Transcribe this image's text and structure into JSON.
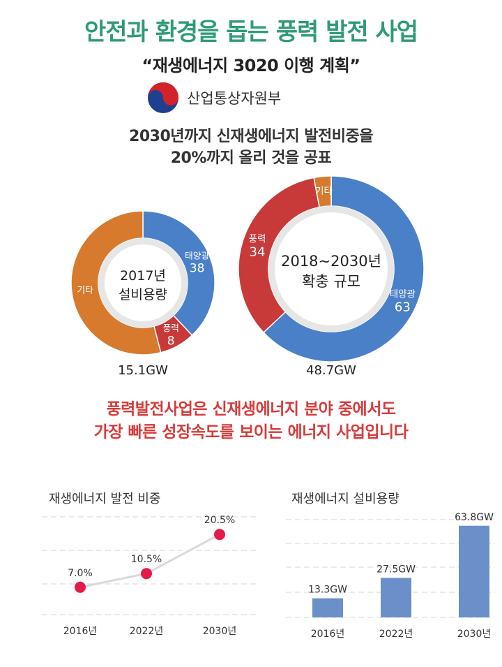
{
  "header": {
    "title": "안전과 환경을 돕는 풍력 발전 사업",
    "subtitle": "“재생에너지 3020 이행 계획”",
    "ministry": "산업통상자원부"
  },
  "headline": {
    "line1": "2030년까지 신재생에너지 발전비중을",
    "line2": "20%까지 올리 것을 공표"
  },
  "message": {
    "line1": "풍력발전사업은 신재생에너지 분야 중에서도",
    "line2": "가장 빠른 성장속도를 보이는 에너지 사업입니다"
  },
  "colors": {
    "title_green": "#2f9a78",
    "solar_blue": "#4a80c8",
    "wind_red": "#c83a3a",
    "other_orange": "#d77a2e",
    "message_red": "#d93a3a",
    "dot_pink": "#e5194a",
    "bar_blue": "#6b8fc8"
  },
  "chart_data": [
    {
      "type": "pie",
      "center_label": [
        "2017년",
        "설비용량"
      ],
      "total_label": "15.1GW",
      "slices": [
        {
          "label": "태양광",
          "value": 38,
          "value_label": "38",
          "color": "#4a80c8"
        },
        {
          "label": "풍력",
          "value": 8,
          "value_label": "8",
          "color": "#c83a3a"
        },
        {
          "label": "기타",
          "value": 54,
          "value_label": "",
          "color": "#d77a2e"
        }
      ]
    },
    {
      "type": "pie",
      "center_label": [
        "2018~2030년",
        "확충 규모"
      ],
      "total_label": "48.7GW",
      "slices": [
        {
          "label": "태양광",
          "value": 63,
          "value_label": "63",
          "color": "#4a80c8"
        },
        {
          "label": "풍력",
          "value": 34,
          "value_label": "34",
          "color": "#c83a3a"
        },
        {
          "label": "기타",
          "value": 3,
          "value_label": "",
          "color": "#d77a2e"
        }
      ]
    },
    {
      "type": "line",
      "title": "재생에너지 발전 비중",
      "categories": [
        "2016년",
        "2022년",
        "2030년"
      ],
      "values": [
        7.0,
        10.5,
        20.5
      ],
      "value_labels": [
        "7.0%",
        "10.5%",
        "20.5%"
      ],
      "ylim": [
        0,
        25
      ],
      "grid": true
    },
    {
      "type": "bar",
      "title": "재생에너지 설비용량",
      "categories": [
        "2016년",
        "2022년",
        "2030년"
      ],
      "values": [
        13.3,
        27.5,
        63.8
      ],
      "value_labels": [
        "13.3GW",
        "27.5GW",
        "63.8GW"
      ],
      "ylim": [
        0,
        70
      ],
      "grid": true
    }
  ]
}
